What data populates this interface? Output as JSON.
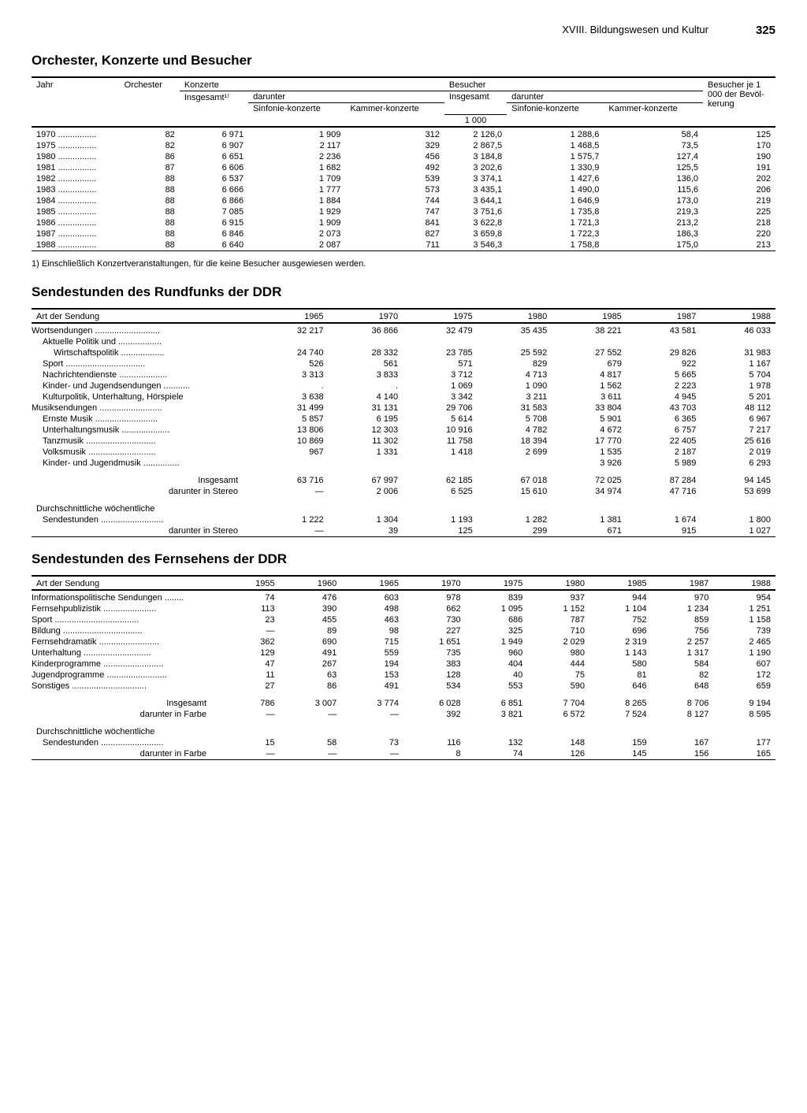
{
  "page": {
    "chapter": "XVIII. Bildungswesen und Kultur",
    "number": "325"
  },
  "table1": {
    "title": "Orchester, Konzerte und Besucher",
    "footnote": "1) Einschließlich Konzertveranstaltungen, für die keine Besucher ausgewiesen werden.",
    "headers": {
      "jahr": "Jahr",
      "orchester": "Orchester",
      "konzerte": "Konzerte",
      "besucher": "Besucher",
      "besucher_je": "Besucher je 1 000 der Bevöl-kerung",
      "insgesamt1": "Insgesamt¹⁾",
      "insgesamt": "Insgesamt",
      "darunter": "darunter",
      "sinfonie": "Sinfonie-konzerte",
      "kammer": "Kammer-konzerte",
      "unit": "1 000"
    },
    "rows": [
      {
        "jahr": "1970",
        "orch": "82",
        "k_ins": "6 971",
        "k_sin": "1 909",
        "k_kam": "312",
        "b_ins": "2 126,0",
        "b_sin": "1 288,6",
        "b_kam": "58,4",
        "b_je": "125"
      },
      {
        "jahr": "1975",
        "orch": "82",
        "k_ins": "6 907",
        "k_sin": "2 117",
        "k_kam": "329",
        "b_ins": "2 867,5",
        "b_sin": "1 468,5",
        "b_kam": "73,5",
        "b_je": "170"
      },
      {
        "jahr": "1980",
        "orch": "86",
        "k_ins": "6 651",
        "k_sin": "2 236",
        "k_kam": "456",
        "b_ins": "3 184,8",
        "b_sin": "1 575,7",
        "b_kam": "127,4",
        "b_je": "190"
      },
      {
        "jahr": "1981",
        "orch": "87",
        "k_ins": "6 606",
        "k_sin": "1 682",
        "k_kam": "492",
        "b_ins": "3 202,6",
        "b_sin": "1 330,9",
        "b_kam": "125,5",
        "b_je": "191"
      },
      {
        "jahr": "1982",
        "orch": "88",
        "k_ins": "6 537",
        "k_sin": "1 709",
        "k_kam": "539",
        "b_ins": "3 374,1",
        "b_sin": "1 427,6",
        "b_kam": "136,0",
        "b_je": "202"
      },
      {
        "jahr": "1983",
        "orch": "88",
        "k_ins": "6 666",
        "k_sin": "1 777",
        "k_kam": "573",
        "b_ins": "3 435,1",
        "b_sin": "1 490,0",
        "b_kam": "115,6",
        "b_je": "206"
      },
      {
        "jahr": "1984",
        "orch": "88",
        "k_ins": "6 866",
        "k_sin": "1 884",
        "k_kam": "744",
        "b_ins": "3 644,1",
        "b_sin": "1 646,9",
        "b_kam": "173,0",
        "b_je": "219"
      },
      {
        "jahr": "1985",
        "orch": "88",
        "k_ins": "7 085",
        "k_sin": "1 929",
        "k_kam": "747",
        "b_ins": "3 751,6",
        "b_sin": "1 735,8",
        "b_kam": "219,3",
        "b_je": "225"
      },
      {
        "jahr": "1986",
        "orch": "88",
        "k_ins": "6 915",
        "k_sin": "1 909",
        "k_kam": "841",
        "b_ins": "3 622,8",
        "b_sin": "1 721,3",
        "b_kam": "213,2",
        "b_je": "218"
      },
      {
        "jahr": "1987",
        "orch": "88",
        "k_ins": "6 846",
        "k_sin": "2 073",
        "k_kam": "827",
        "b_ins": "3 659,8",
        "b_sin": "1 722,3",
        "b_kam": "186,3",
        "b_je": "220"
      },
      {
        "jahr": "1988",
        "orch": "88",
        "k_ins": "6 640",
        "k_sin": "2 087",
        "k_kam": "711",
        "b_ins": "3 546,3",
        "b_sin": "1 758,8",
        "b_kam": "175,0",
        "b_je": "213"
      }
    ]
  },
  "table2": {
    "title": "Sendestunden des Rundfunks der DDR",
    "col_label": "Art der Sendung",
    "years": [
      "1965",
      "1970",
      "1975",
      "1980",
      "1985",
      "1987",
      "1988"
    ],
    "rows": [
      {
        "label": "Wortsendungen",
        "indent": 0,
        "v": [
          "32 217",
          "36 866",
          "32 479",
          "35 435",
          "38 221",
          "43 581",
          "46 033"
        ]
      },
      {
        "label": "Aktuelle Politik und",
        "indent": 1,
        "v": [
          "",
          "",
          "",
          "",
          "",
          "",
          ""
        ]
      },
      {
        "label": "Wirtschaftspolitik",
        "indent": 2,
        "v": [
          "24 740",
          "28 332",
          "23 785",
          "25 592",
          "27 552",
          "29 826",
          "31 983"
        ]
      },
      {
        "label": "Sport",
        "indent": 1,
        "v": [
          "526",
          "561",
          "571",
          "829",
          "679",
          "922",
          "1 167"
        ]
      },
      {
        "label": "Nachrichtendienste",
        "indent": 1,
        "v": [
          "3 313",
          "3 833",
          "3 712",
          "4 713",
          "4 817",
          "5 665",
          "5 704"
        ]
      },
      {
        "label": "Kinder- und Jugendsendungen",
        "indent": 1,
        "v": [
          ".",
          ".",
          "1 069",
          "1 090",
          "1 562",
          "2 223",
          "1 978"
        ]
      },
      {
        "label": "Kulturpolitik, Unterhaltung, Hörspiele",
        "indent": 1,
        "v": [
          "3 638",
          "4 140",
          "3 342",
          "3 211",
          "3 611",
          "4 945",
          "5 201"
        ]
      },
      {
        "label": "Musiksendungen",
        "indent": 0,
        "v": [
          "31 499",
          "31 131",
          "29 706",
          "31 583",
          "33 804",
          "43 703",
          "48 112"
        ]
      },
      {
        "label": "Ernste Musik",
        "indent": 1,
        "v": [
          "5 857",
          "6 195",
          "5 614",
          "5 708",
          "5 901",
          "6 365",
          "6 967"
        ]
      },
      {
        "label": "Unterhaltungsmusik",
        "indent": 1,
        "v": [
          "13 806",
          "12 303",
          "10 916",
          "4 782",
          "4 672",
          "6 757",
          "7 217"
        ]
      },
      {
        "label": "Tanzmusik",
        "indent": 1,
        "v": [
          "10 869",
          "11 302",
          "11 758",
          "18 394",
          "17 770",
          "22 405",
          "25 616"
        ]
      },
      {
        "label": "Volksmusik",
        "indent": 1,
        "v": [
          "967",
          "1 331",
          "1 418",
          "2 699",
          "1 535",
          "2 187",
          "2 019"
        ]
      },
      {
        "label": "Kinder- und Jugendmusik",
        "indent": 1,
        "v": [
          "",
          "",
          "",
          "",
          "3 926",
          "5 989",
          "6 293"
        ]
      }
    ],
    "totals": [
      {
        "label": "Insgesamt",
        "bold": true,
        "v": [
          "63 716",
          "67 997",
          "62 185",
          "67 018",
          "72 025",
          "87 284",
          "94 145"
        ]
      },
      {
        "label": "darunter in Stereo",
        "bold": false,
        "v": [
          "—",
          "2 006",
          "6 525",
          "15 610",
          "34 974",
          "47 716",
          "53 699"
        ]
      }
    ],
    "weekly_label": "Durchschnittliche wöchentliche",
    "weekly": [
      {
        "label": "Sendestunden",
        "indent": 1,
        "v": [
          "1 222",
          "1 304",
          "1 193",
          "1 282",
          "1 381",
          "1 674",
          "1 800"
        ]
      },
      {
        "label": "darunter in Stereo",
        "indent": 2,
        "v": [
          "—",
          "39",
          "125",
          "299",
          "671",
          "915",
          "1 027"
        ]
      }
    ]
  },
  "table3": {
    "title": "Sendestunden des Fernsehens der DDR",
    "col_label": "Art der Sendung",
    "years": [
      "1955",
      "1960",
      "1965",
      "1970",
      "1975",
      "1980",
      "1985",
      "1987",
      "1988"
    ],
    "rows": [
      {
        "label": "Informationspolitische Sendungen",
        "v": [
          "74",
          "476",
          "603",
          "978",
          "839",
          "937",
          "944",
          "970",
          "954"
        ]
      },
      {
        "label": "Fernsehpublizistik",
        "v": [
          "113",
          "390",
          "498",
          "662",
          "1 095",
          "1 152",
          "1 104",
          "1 234",
          "1 251"
        ]
      },
      {
        "label": "Sport",
        "v": [
          "23",
          "455",
          "463",
          "730",
          "686",
          "787",
          "752",
          "859",
          "1 158"
        ]
      },
      {
        "label": "Bildung",
        "v": [
          "—",
          "89",
          "98",
          "227",
          "325",
          "710",
          "696",
          "756",
          "739"
        ]
      },
      {
        "label": "Fernsehdramatik",
        "v": [
          "362",
          "690",
          "715",
          "1 651",
          "1 949",
          "2 029",
          "2 319",
          "2 257",
          "2 465"
        ]
      },
      {
        "label": "Unterhaltung",
        "v": [
          "129",
          "491",
          "559",
          "735",
          "960",
          "980",
          "1 143",
          "1 317",
          "1 190"
        ]
      },
      {
        "label": "Kinderprogramme",
        "v": [
          "47",
          "267",
          "194",
          "383",
          "404",
          "444",
          "580",
          "584",
          "607"
        ]
      },
      {
        "label": "Jugendprogramme",
        "v": [
          "11",
          "63",
          "153",
          "128",
          "40",
          "75",
          "81",
          "82",
          "172"
        ]
      },
      {
        "label": "Sonstiges",
        "v": [
          "27",
          "86",
          "491",
          "534",
          "553",
          "590",
          "646",
          "648",
          "659"
        ]
      }
    ],
    "totals": [
      {
        "label": "Insgesamt",
        "bold": true,
        "v": [
          "786",
          "3 007",
          "3 774",
          "6 028",
          "6 851",
          "7 704",
          "8 265",
          "8 706",
          "9 194"
        ]
      },
      {
        "label": "darunter in Farbe",
        "bold": false,
        "v": [
          "—",
          "—",
          "—",
          "392",
          "3 821",
          "6 572",
          "7 524",
          "8 127",
          "8 595"
        ]
      }
    ],
    "weekly_label": "Durchschnittliche wöchentliche",
    "weekly": [
      {
        "label": "Sendestunden",
        "indent": 1,
        "v": [
          "15",
          "58",
          "73",
          "116",
          "132",
          "148",
          "159",
          "167",
          "177"
        ]
      },
      {
        "label": "darunter in Farbe",
        "indent": 2,
        "v": [
          "—",
          "—",
          "—",
          "8",
          "74",
          "126",
          "145",
          "156",
          "165"
        ]
      }
    ]
  }
}
